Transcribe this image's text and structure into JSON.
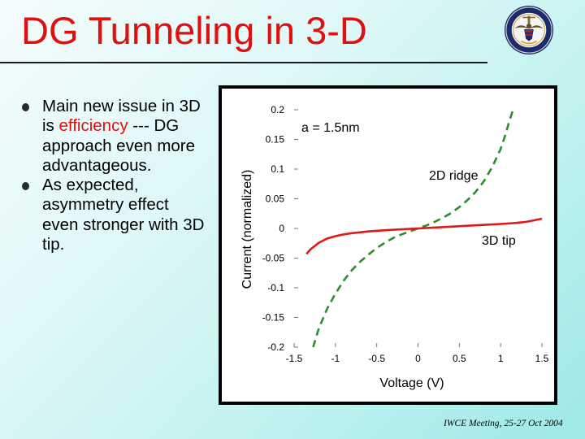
{
  "slide": {
    "title": "DG Tunneling in 3-D",
    "bullets": [
      {
        "before": "Main new issue in 3D is ",
        "highlight": "efficiency",
        "after": " --- DG approach even more advantageous."
      },
      {
        "before": "As expected, asymmetry effect even stronger with 3D tip.",
        "highlight": "",
        "after": ""
      }
    ],
    "footer": "IWCE Meeting, 25-27 Oct 2004",
    "colors": {
      "title": "#e01010",
      "highlight": "#e01010",
      "background": "#b8f0ee"
    },
    "icons": {
      "seal": "department-of-the-navy-seal-icon",
      "bullet": "bullet-dot-icon"
    }
  },
  "chart_data": {
    "type": "line",
    "title": "",
    "annotation": "a = 1.5nm",
    "xlabel": "Voltage (V)",
    "ylabel": "Current (normalized)",
    "xlim": [
      -1.5,
      1.5
    ],
    "ylim": [
      -0.2,
      0.2
    ],
    "x_ticks": [
      "-1.5",
      "-1",
      "-0.5",
      "0",
      "0.5",
      "1",
      "1.5"
    ],
    "y_ticks": [
      "0.2",
      "0.15",
      "0.1",
      "0.05",
      "0",
      "-0.05",
      "-0.1",
      "-0.15",
      "-0.2"
    ],
    "grid": false,
    "series": [
      {
        "name": "2D ridge",
        "color": "#2e8b2e",
        "dash": "dashed",
        "x": [
          -1.27,
          -1.2,
          -1.1,
          -1.0,
          -0.9,
          -0.8,
          -0.7,
          -0.6,
          -0.5,
          -0.4,
          -0.3,
          -0.2,
          -0.1,
          0.0,
          0.1,
          0.2,
          0.3,
          0.4,
          0.5,
          0.6,
          0.7,
          0.8,
          0.9,
          1.0,
          1.05,
          1.1,
          1.15
        ],
        "values": [
          -0.2,
          -0.168,
          -0.135,
          -0.11,
          -0.088,
          -0.07,
          -0.056,
          -0.044,
          -0.033,
          -0.024,
          -0.016,
          -0.01,
          -0.005,
          0.0,
          0.005,
          0.011,
          0.018,
          0.026,
          0.036,
          0.048,
          0.062,
          0.08,
          0.104,
          0.134,
          0.155,
          0.178,
          0.2
        ]
      },
      {
        "name": "3D tip",
        "color": "#e01818",
        "dash": "solid",
        "x": [
          -1.35,
          -1.3,
          -1.2,
          -1.1,
          -1.0,
          -0.9,
          -0.8,
          -0.6,
          -0.4,
          -0.2,
          0.0,
          0.2,
          0.4,
          0.6,
          0.8,
          1.0,
          1.2,
          1.3,
          1.4,
          1.5
        ],
        "values": [
          -0.043,
          -0.035,
          -0.024,
          -0.017,
          -0.013,
          -0.01,
          -0.008,
          -0.005,
          -0.003,
          -0.0015,
          0.0,
          0.0015,
          0.003,
          0.0045,
          0.006,
          0.0075,
          0.0095,
          0.011,
          0.0135,
          0.0165
        ]
      }
    ]
  }
}
